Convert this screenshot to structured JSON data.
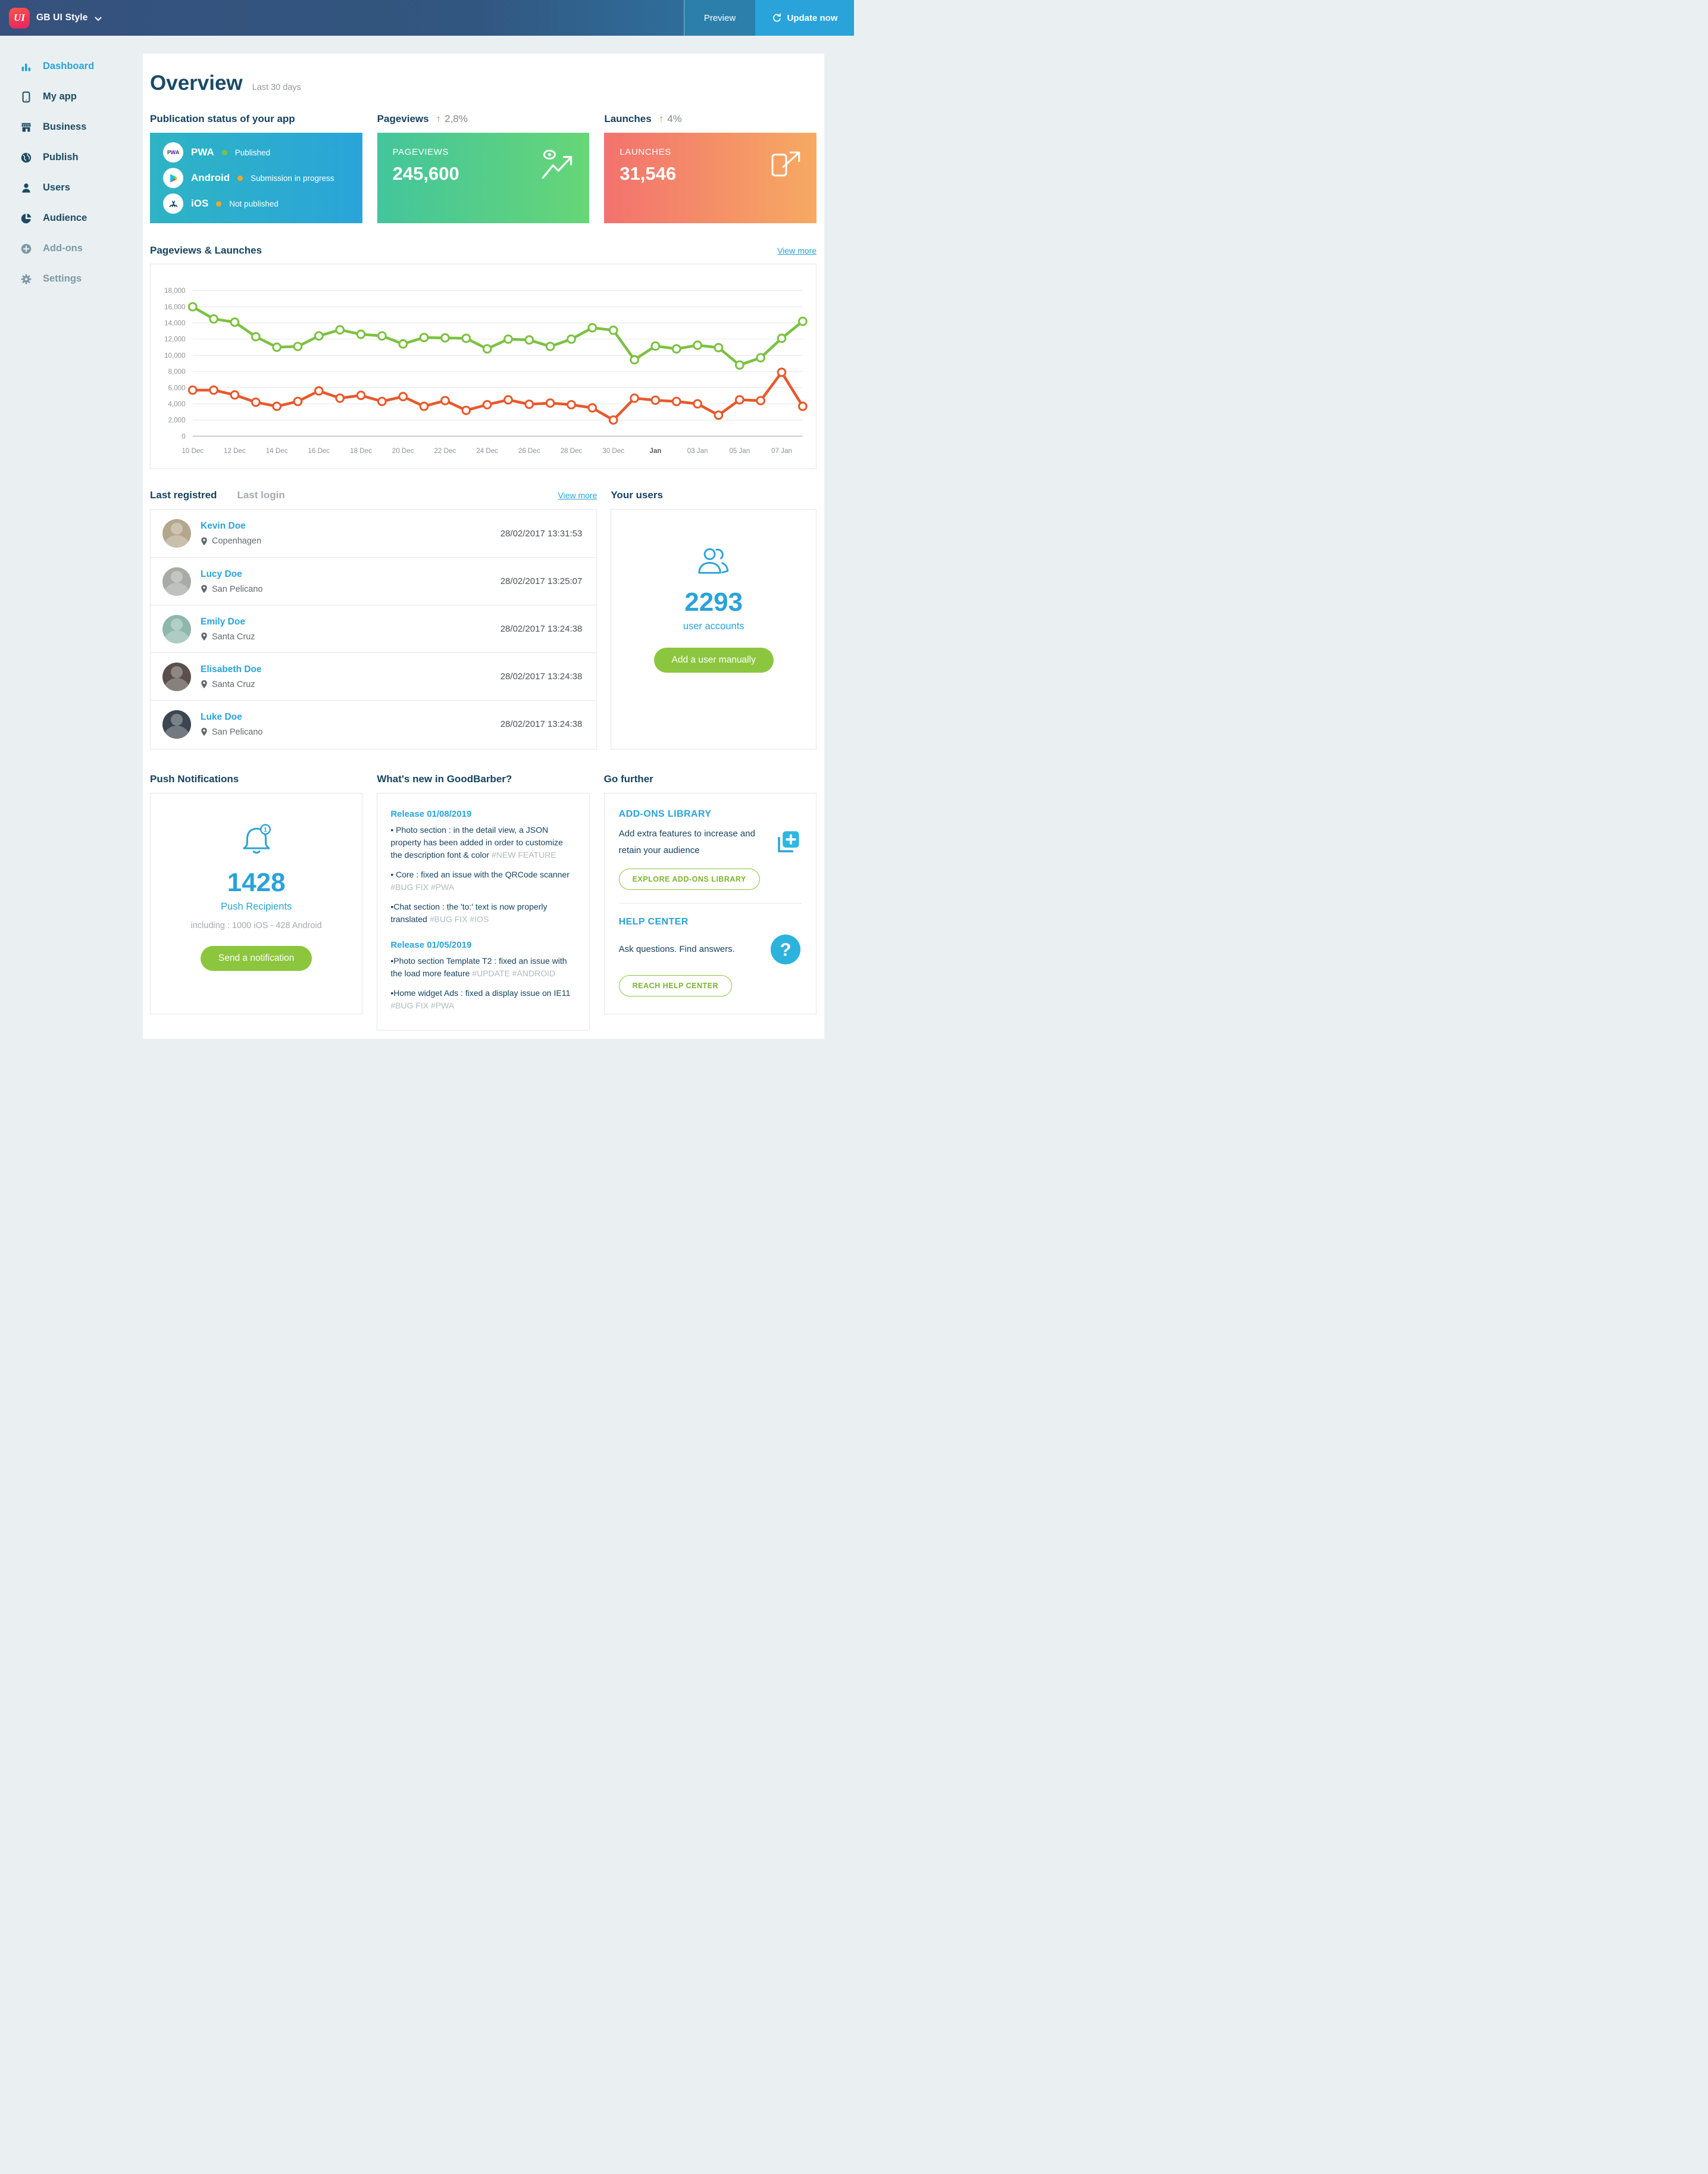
{
  "header": {
    "logo_text": "UI",
    "app_name": "GB UI Style",
    "preview_label": "Preview",
    "update_label": "Update now"
  },
  "sidebar": {
    "items": [
      {
        "label": "Dashboard",
        "icon": "bar-chart",
        "state": "active"
      },
      {
        "label": "My app",
        "icon": "phone",
        "state": "normal"
      },
      {
        "label": "Business",
        "icon": "store",
        "state": "normal"
      },
      {
        "label": "Publish",
        "icon": "globe",
        "state": "normal"
      },
      {
        "label": "Users",
        "icon": "person",
        "state": "normal"
      },
      {
        "label": "Audience",
        "icon": "pie",
        "state": "normal"
      },
      {
        "label": "Add-ons",
        "icon": "plus-circle",
        "state": "disabled"
      },
      {
        "label": "Settings",
        "icon": "gear",
        "state": "disabled"
      }
    ]
  },
  "overview": {
    "title": "Overview",
    "subtitle": "Last 30 days"
  },
  "publication": {
    "heading": "Publication status of your app",
    "rows": [
      {
        "platform": "PWA",
        "status": "Published",
        "dot_color": "#7ac143",
        "icon": "pwa"
      },
      {
        "platform": "Android",
        "status": "Submission in progress",
        "dot_color": "#f5a623",
        "icon": "play"
      },
      {
        "platform": "iOS",
        "status": "Not published",
        "dot_color": "#f5a623",
        "icon": "appstore"
      }
    ]
  },
  "pageviews_card": {
    "heading": "Pageviews",
    "delta": "2,8%",
    "label": "PAGEVIEWS",
    "value": "245,600"
  },
  "launches_card": {
    "heading": "Launches",
    "delta": "4%",
    "label": "LAUNCHES",
    "value": "31,546"
  },
  "chart_section": {
    "heading": "Pageviews & Launches",
    "view_more": "View more"
  },
  "chart_data": {
    "type": "line",
    "title": "Pageviews & Launches",
    "x_labels": [
      "10 Dec",
      "12 Dec",
      "14 Dec",
      "16 Dec",
      "18 Dec",
      "20 Dec",
      "22 Dec",
      "24 Dec",
      "26 Dec",
      "28 Dec",
      "30 Dec",
      "Jan",
      "03 Jan",
      "05 Jan",
      "07 Jan"
    ],
    "label_every": 2,
    "ylim": [
      0,
      18000
    ],
    "ytick_step": 2000,
    "grid": true,
    "legend": "none",
    "series": [
      {
        "name": "Pageviews",
        "color": "#7cc142",
        "values": [
          16000,
          14500,
          14100,
          12300,
          11000,
          11100,
          12400,
          13150,
          12600,
          12400,
          11400,
          12200,
          12150,
          12100,
          10800,
          12000,
          11900,
          11100,
          12000,
          13400,
          13100,
          9450,
          11150,
          10800,
          11250,
          10950,
          8800,
          9700,
          12100,
          14200
        ]
      },
      {
        "name": "Launches",
        "color": "#e8582b",
        "values": [
          5700,
          5700,
          5100,
          4200,
          3700,
          4300,
          5600,
          4700,
          5050,
          4300,
          4900,
          3700,
          4400,
          3200,
          3900,
          4500,
          3950,
          4100,
          3900,
          3500,
          2000,
          4700,
          4450,
          4300,
          4000,
          2600,
          4500,
          4400,
          7900,
          3700
        ]
      }
    ]
  },
  "users_section": {
    "tab_registered": "Last registred",
    "tab_login": "Last login",
    "view_more": "View more",
    "rows": [
      {
        "name": "Kevin Doe",
        "location": "Copenhagen",
        "time": "28/02/2017 13:31:53",
        "avatar_color": "#b5a78e"
      },
      {
        "name": "Lucy Doe",
        "location": "San Pelicano",
        "time": "28/02/2017 13:25:07",
        "avatar_color": "#a8aaa5"
      },
      {
        "name": "Emily Doe",
        "location": "Santa Cruz",
        "time": "28/02/2017 13:24:38",
        "avatar_color": "#8fb8ad"
      },
      {
        "name": "Elisabeth Doe",
        "location": "Santa Cruz",
        "time": "28/02/2017 13:24:38",
        "avatar_color": "#5a4f4b"
      },
      {
        "name": "Luke Doe",
        "location": "San Pelicano",
        "time": "28/02/2017 13:24:38",
        "avatar_color": "#3c4650"
      }
    ],
    "your_users": {
      "heading": "Your users",
      "count": "2293",
      "label": "user accounts",
      "button": "Add a user manually"
    }
  },
  "push": {
    "heading": "Push Notifications",
    "badge": "1",
    "count": "1428",
    "label": "Push Recipients",
    "including": "including : 1000 iOS - 428 Android",
    "button": "Send a notification"
  },
  "whats_new": {
    "heading": "What's new in GoodBarber?",
    "releases": [
      {
        "title": "Release 01/08/2019",
        "items": [
          {
            "text": "• Photo section : in the detail view, a JSON property has been added in order to customize the description font & color",
            "tags": "#NEW FEATURE"
          },
          {
            "text": "• Core : fixed an issue with the QRCode scanner",
            "tags": "#BUG FIX #PWA"
          },
          {
            "text": "•Chat section : the 'to:' text is now properly translated",
            "tags": "#BUG FIX #IOS"
          }
        ]
      },
      {
        "title": "Release 01/05/2019",
        "items": [
          {
            "text": "•Photo section Template T2 : fixed an issue with the load more feature",
            "tags": "#UPDATE #ANDROID"
          },
          {
            "text": "•Home widget Ads : fixed a display issue on IE11",
            "tags": "#BUG FIX #PWA"
          }
        ]
      }
    ]
  },
  "go_further": {
    "heading": "Go further",
    "addons": {
      "title": "ADD-ONS LIBRARY",
      "text": "Add extra features to increase and retain your audience",
      "button": "EXPLORE ADD-ONS LIBRARY"
    },
    "help": {
      "title": "HELP CENTER",
      "text": "Ask questions. Find answers.",
      "button": "REACH HELP CENTER"
    }
  },
  "colors": {
    "accent_blue": "#29a3d9",
    "navy": "#16425f",
    "green_button": "#8cc63e",
    "chart_green": "#7cc142",
    "chart_orange": "#e8582b",
    "status_green": "#7ac143",
    "status_orange": "#f5a623"
  }
}
